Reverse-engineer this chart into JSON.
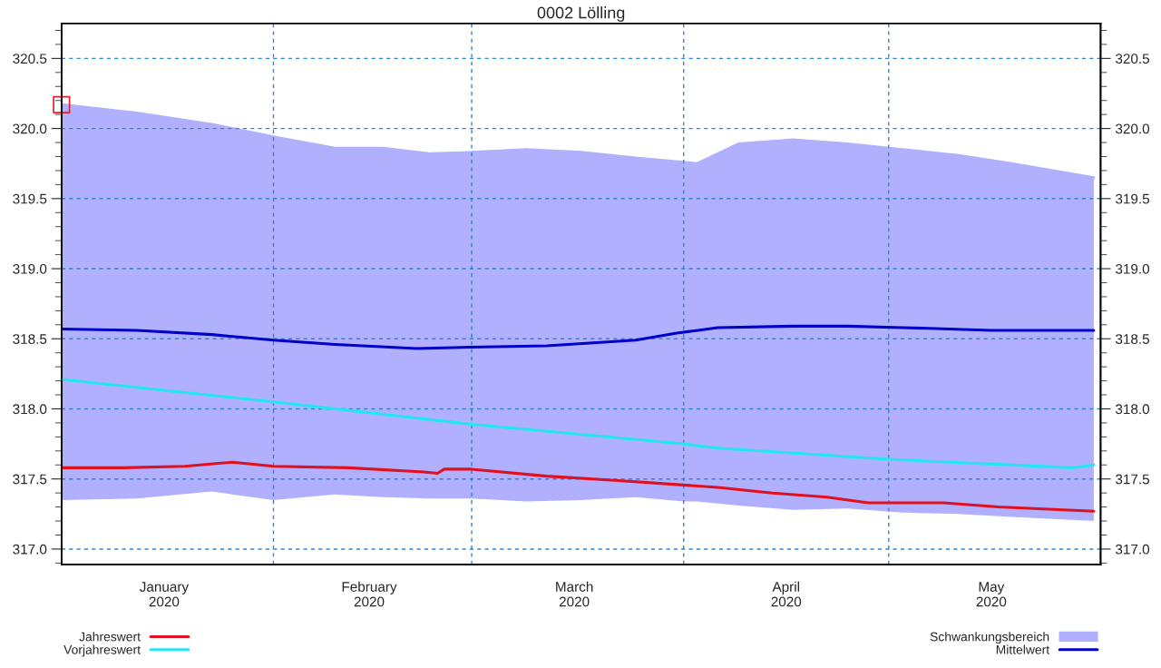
{
  "chart_data": {
    "type": "line",
    "title": "0002 Lölling",
    "xlim": [
      "2020-01-01",
      "2020-06-01"
    ],
    "xticks": [
      {
        "value": "2020-01-01",
        "label": null
      },
      {
        "value": "2020-01-16",
        "label": "January\n2020"
      },
      {
        "value": "2020-02-01",
        "label": null
      },
      {
        "value": "2020-02-15",
        "label": "February\n2020"
      },
      {
        "value": "2020-03-01",
        "label": null
      },
      {
        "value": "2020-03-16",
        "label": "March\n2020"
      },
      {
        "value": "2020-04-01",
        "label": null
      },
      {
        "value": "2020-04-16",
        "label": "April\n2020"
      },
      {
        "value": "2020-05-01",
        "label": null
      },
      {
        "value": "2020-05-16",
        "label": "May\n2020"
      },
      {
        "value": "2020-06-01",
        "label": null
      }
    ],
    "ylim": [
      316.89,
      320.75
    ],
    "yticks": [
      {
        "value": 317,
        "label": "317.0"
      },
      317.5,
      {
        "value": 318,
        "label": "318.0"
      },
      318.5,
      {
        "value": 319,
        "label": "319.0"
      },
      319.5,
      {
        "value": 320,
        "label": "320.0"
      },
      320.5
    ],
    "y2lim": [
      316.89,
      320.75
    ],
    "y2ticks": [
      {
        "value": 317,
        "label": "317.0"
      },
      317.5,
      {
        "value": 318,
        "label": "318.0"
      },
      318.5,
      {
        "value": 319,
        "label": "319.0"
      },
      319.5,
      {
        "value": 320,
        "label": "320.0"
      },
      320.5
    ],
    "grid": true,
    "legend": "bottom",
    "series": [
      {
        "name": "Schwankungsbereich",
        "color": "#b0b0ff",
        "x": [
          "2020-01-01",
          "2020-01-12",
          "2020-01-23",
          "2020-02-01",
          "2020-02-10",
          "2020-02-17",
          "2020-02-24",
          "2020-03-01",
          "2020-03-09",
          "2020-03-17",
          "2020-03-25",
          "2020-04-01",
          "2020-04-03",
          "2020-04-09",
          "2020-04-17",
          "2020-04-25",
          "2020-05-03",
          "2020-05-11",
          "2020-05-19",
          "2020-05-31"
        ],
        "values": [
          320.17,
          320.11,
          320.03,
          319.94,
          319.86,
          319.86,
          319.82,
          319.83,
          319.85,
          319.83,
          319.79,
          319.76,
          319.75,
          319.89,
          319.92,
          319.89,
          319.85,
          319.81,
          319.75,
          319.65
        ],
        "upper": [
          320.17,
          320.11,
          320.03,
          319.94,
          319.86,
          319.86,
          319.82,
          319.83,
          319.85,
          319.83,
          319.79,
          319.76,
          319.75,
          319.89,
          319.92,
          319.89,
          319.85,
          319.81,
          319.75,
          319.65
        ],
        "lower": [
          317.35,
          317.36,
          317.41,
          317.35,
          317.39,
          317.37,
          317.36,
          317.36,
          317.34,
          317.35,
          317.37,
          317.34,
          317.34,
          317.31,
          317.28,
          317.29,
          317.26,
          317.25,
          317.23,
          317.2
        ]
      },
      {
        "name": "Mittelwert",
        "color": "#0000c8",
        "x": [
          "2020-01-01",
          "2020-01-12",
          "2020-01-23",
          "2020-02-01",
          "2020-02-10",
          "2020-02-22",
          "2020-03-01",
          "2020-03-12",
          "2020-03-25",
          "2020-03-31",
          "2020-04-06",
          "2020-04-17",
          "2020-04-25",
          "2020-05-03",
          "2020-05-16",
          "2020-05-31"
        ],
        "values": [
          318.57,
          318.56,
          318.53,
          318.49,
          318.46,
          318.43,
          318.44,
          318.45,
          318.49,
          318.54,
          318.58,
          318.59,
          318.59,
          318.58,
          318.56,
          318.56
        ]
      },
      {
        "name": "Vorjahreswert",
        "color": "#22e6f2",
        "x": [
          "2020-01-01",
          "2020-02-01",
          "2020-03-01",
          "2020-04-01",
          "2020-04-06",
          "2020-05-01",
          "2020-05-28",
          "2020-05-31"
        ],
        "values": [
          318.21,
          318.05,
          317.89,
          317.75,
          317.72,
          317.64,
          317.58,
          317.6
        ]
      },
      {
        "name": "Jahreswert",
        "color": "#e0101e",
        "x": [
          "2020-01-01",
          "2020-01-10",
          "2020-01-19",
          "2020-01-26",
          "2020-02-01",
          "2020-02-12",
          "2020-02-23",
          "2020-02-25",
          "2020-02-26",
          "2020-03-01",
          "2020-03-12",
          "2020-03-22",
          "2020-03-31",
          "2020-04-06",
          "2020-04-14",
          "2020-04-22",
          "2020-04-28",
          "2020-05-09",
          "2020-05-17",
          "2020-05-31"
        ],
        "values": [
          317.58,
          317.58,
          317.59,
          317.62,
          317.59,
          317.58,
          317.55,
          317.54,
          317.57,
          317.57,
          317.52,
          317.49,
          317.46,
          317.44,
          317.4,
          317.37,
          317.33,
          317.33,
          317.3,
          317.27
        ]
      },
      {
        "type": "scatter",
        "marker": "square",
        "color": "#e0202a",
        "x": [
          "2020-01-01"
        ],
        "values": [
          320.17
        ]
      }
    ]
  }
}
